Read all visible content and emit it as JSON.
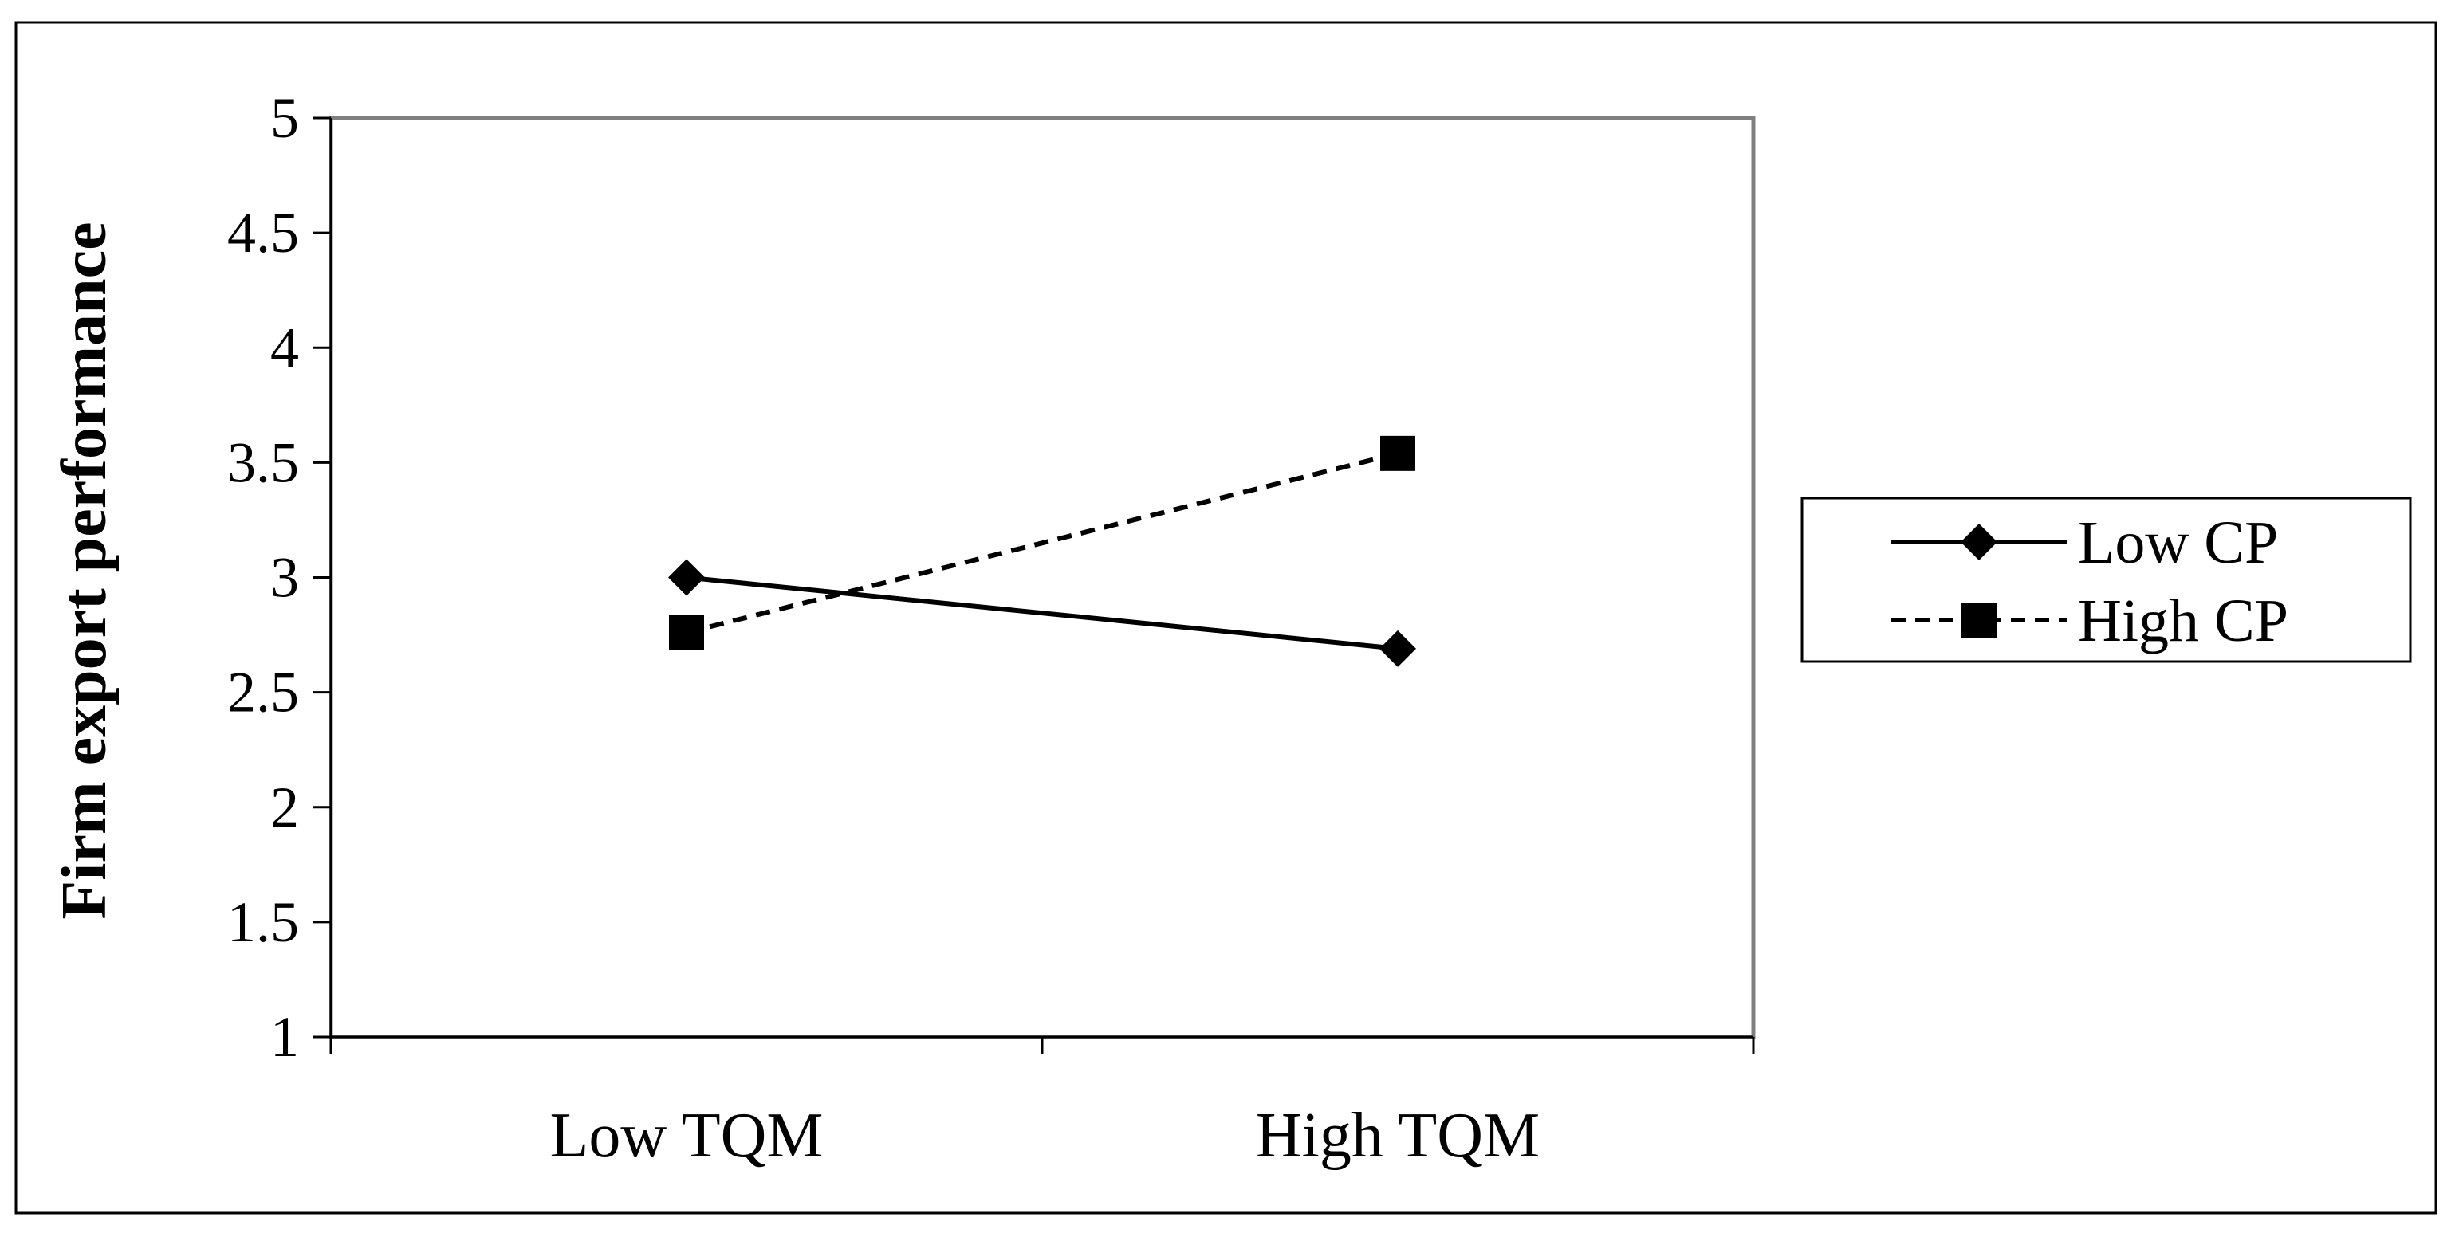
{
  "chart_data": {
    "type": "line",
    "title": "",
    "xlabel": "",
    "ylabel": "Firm export performance",
    "categories": [
      "Low TQM",
      "High TQM"
    ],
    "ylim": [
      1,
      5
    ],
    "yticks": [
      "1",
      "1.5",
      "2",
      "2.5",
      "3",
      "3.5",
      "4",
      "4.5",
      "5"
    ],
    "grid": false,
    "legend_position": "right",
    "series": [
      {
        "name": "Low CP",
        "values": [
          3.0,
          2.69
        ],
        "line": "solid",
        "marker": "diamond",
        "color": "#000000"
      },
      {
        "name": "High CP",
        "values": [
          2.76,
          3.54
        ],
        "line": "dashed",
        "marker": "square",
        "color": "#000000"
      }
    ]
  }
}
